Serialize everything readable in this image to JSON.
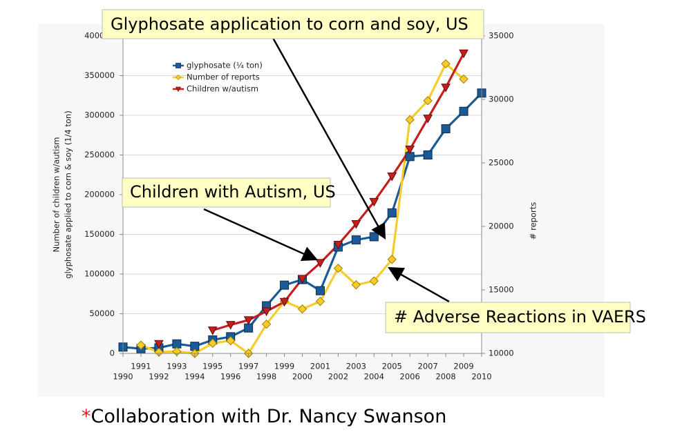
{
  "chart_data": {
    "type": "line",
    "title": "Glyphosate application to corn and soy, US",
    "y_label_lines": [
      "Number of children w/autism",
      "glyphosate applied to corn & soy (1/4 ton)"
    ],
    "y2_label": "# reports",
    "x": [
      1990,
      1991,
      1992,
      1993,
      1994,
      1995,
      1996,
      1997,
      1998,
      1999,
      2000,
      2001,
      2002,
      2003,
      2004,
      2005,
      2006,
      2007,
      2008,
      2009,
      2010
    ],
    "xlim": [
      1990,
      2010
    ],
    "xticks": [
      1990,
      1991,
      1992,
      1993,
      1994,
      1995,
      1996,
      1997,
      1998,
      1999,
      2000,
      2001,
      2002,
      2003,
      2004,
      2005,
      2006,
      2007,
      2008,
      2009,
      2010
    ],
    "ylim": [
      0,
      400000
    ],
    "yticks": [
      0,
      50000,
      100000,
      150000,
      200000,
      250000,
      300000,
      350000,
      400000
    ],
    "y2lim": [
      10000,
      35000
    ],
    "y2ticks": [
      10000,
      15000,
      20000,
      25000,
      30000,
      35000
    ],
    "grid": true,
    "legend": "top-left",
    "series": [
      {
        "name": "glyphosate (¼ ton)",
        "color": "#1a5a96",
        "marker": "square",
        "values": [
          8000,
          6000,
          7000,
          12000,
          9000,
          17000,
          21000,
          32000,
          60000,
          86000,
          93000,
          79000,
          134000,
          143000,
          147000,
          177000,
          248000,
          250000,
          283000,
          305000,
          328000
        ]
      },
      {
        "name": "Number of reports",
        "color": "#f5cc2a",
        "marker": "diamond",
        "axis": "y2",
        "values": [
          null,
          10650,
          10100,
          10150,
          10000,
          10800,
          11000,
          10000,
          12300,
          14100,
          13500,
          14100,
          16700,
          15400,
          15700,
          17400,
          28400,
          29900,
          32800,
          31600,
          null
        ]
      },
      {
        "name": "Children w/autism",
        "color": "#c41e1e",
        "marker": "triangle-down",
        "values": [
          null,
          null,
          12000,
          null,
          null,
          29000,
          36000,
          42000,
          53000,
          65000,
          94000,
          114000,
          137000,
          163000,
          191000,
          223000,
          257000,
          296000,
          335000,
          378000,
          null
        ]
      }
    ],
    "annotations": [
      "Children with Autism, US",
      "# Adverse Reactions in VAERS"
    ],
    "footnote": {
      "mark": "*",
      "text": "Collaboration with Dr. Nancy Swanson"
    }
  }
}
